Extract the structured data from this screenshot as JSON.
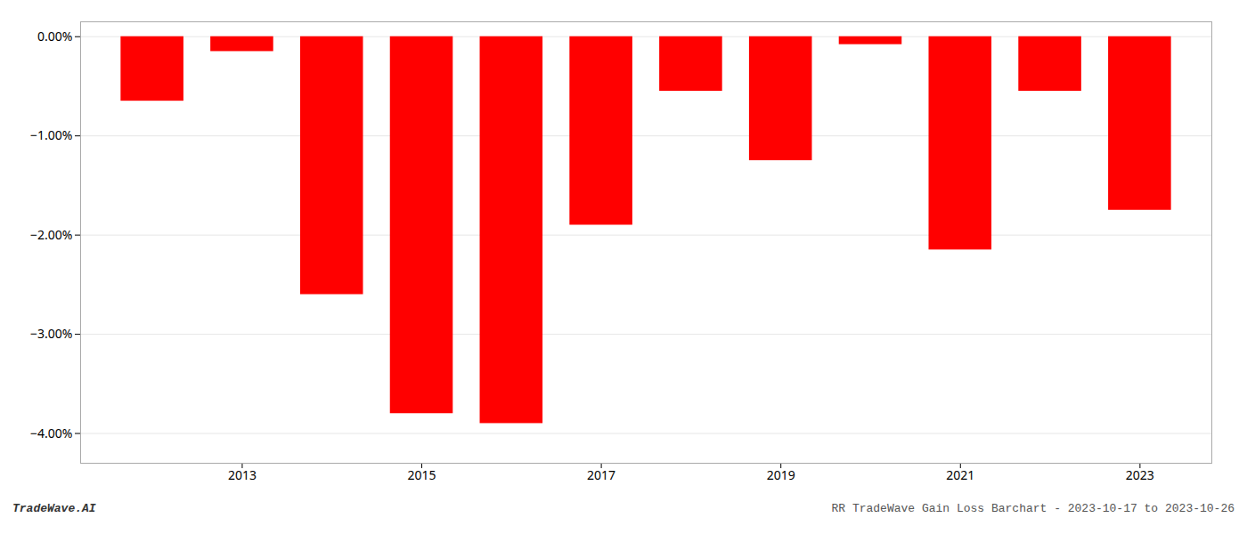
{
  "chart_data": {
    "type": "bar",
    "x": [
      2012,
      2013,
      2014,
      2015,
      2016,
      2017,
      2018,
      2019,
      2020,
      2021,
      2022,
      2023
    ],
    "values": [
      -0.65,
      -0.15,
      -2.6,
      -3.8,
      -3.9,
      -1.9,
      -0.55,
      -1.25,
      -0.08,
      -2.15,
      -0.55,
      -1.75
    ],
    "color": "#ff0000",
    "xlim": [
      2011.2,
      2023.8
    ],
    "xticks": [
      2013,
      2015,
      2017,
      2019,
      2021,
      2023
    ],
    "ylim": [
      -4.3,
      0.15
    ],
    "yticks": [
      {
        "value": 0.0,
        "label": "0.00%"
      },
      {
        "value": -1.0,
        "label": "−1.00%"
      },
      {
        "value": -2.0,
        "label": "−2.00%"
      },
      {
        "value": -3.0,
        "label": "−3.00%"
      },
      {
        "value": -4.0,
        "label": "−4.00%"
      }
    ],
    "grid": true,
    "annotations": [
      "TradeWave.AI",
      "RR TradeWave Gain Loss Barchart - 2023-10-17 to 2023-10-26"
    ]
  }
}
